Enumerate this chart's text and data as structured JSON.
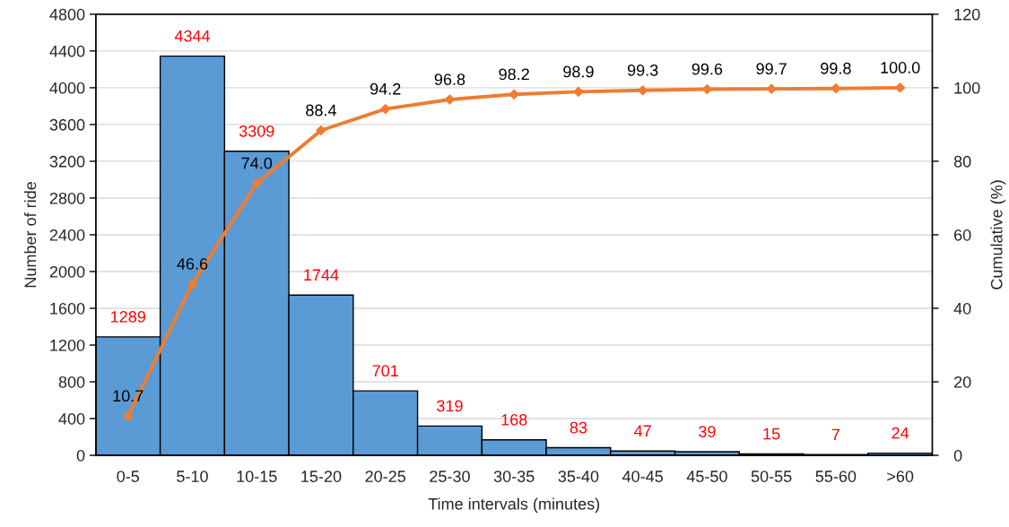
{
  "chart_data": {
    "type": "bar",
    "xlabel": "Time intervals (minutes)",
    "ylabel": "Number of ride",
    "y2label": "Cumulative (%)",
    "categories": [
      "0-5",
      "5-10",
      "10-15",
      "15-20",
      "20-25",
      "25-30",
      "30-35",
      "35-40",
      "40-45",
      "45-50",
      "50-55",
      "55-60",
      ">60"
    ],
    "series": [
      {
        "color": "#5b9bd5",
        "values": [
          1289,
          4344,
          3309,
          1744,
          701,
          319,
          168,
          83,
          47,
          39,
          15,
          7,
          24
        ],
        "value_labels": [
          "1289",
          "4344",
          "3309",
          "1744",
          "701",
          "319",
          "168",
          "83",
          "47",
          "39",
          "15",
          "7",
          "24"
        ]
      },
      {
        "type": "line",
        "axis": "y2",
        "color": "#ed7d31",
        "values": [
          10.7,
          46.6,
          74.0,
          88.4,
          94.2,
          96.8,
          98.2,
          98.9,
          99.3,
          99.6,
          99.7,
          99.8,
          100.0
        ],
        "value_labels": [
          "10.7",
          "46.6",
          "74.0",
          "88.4",
          "94.2",
          "96.8",
          "98.2",
          "98.9",
          "99.3",
          "99.6",
          "99.7",
          "99.8",
          "100.0"
        ]
      }
    ],
    "ylim": [
      0,
      4800
    ],
    "yticks": [
      0,
      400,
      800,
      1200,
      1600,
      2000,
      2400,
      2800,
      3200,
      3600,
      4000,
      4400,
      4800
    ],
    "y2lim": [
      0,
      120
    ],
    "y2ticks": [
      0,
      20,
      40,
      60,
      80,
      100,
      120
    ],
    "grid": "y",
    "marker": "diamond",
    "line_style": "solid"
  }
}
